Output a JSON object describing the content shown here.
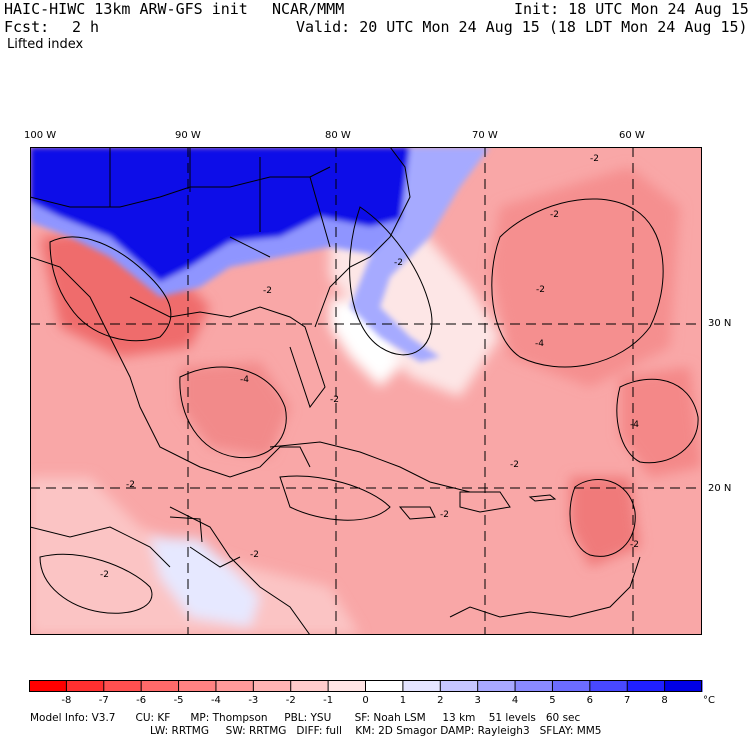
{
  "header": {
    "model_title": "HAIC-HIWC 13km ARW-GFS init",
    "institution": "NCAR/MMM",
    "init": "Init: 18 UTC Mon 24 Aug 15",
    "fcst_label": "Fcst:",
    "fcst_value": "2 h",
    "valid": "Valid: 20 UTC Mon 24 Aug 15 (18 LDT Mon 24 Aug 15)",
    "field": "Lifted index"
  },
  "map": {
    "lon_labels": [
      "100 W",
      "90 W",
      "80 W",
      "70 W",
      "60 W"
    ],
    "lat_labels": [
      "30 N",
      "20 N"
    ],
    "contour_labels": [
      "-2",
      "-2",
      "-2",
      "-2",
      "-2",
      "-4",
      "-4",
      "-4",
      "-2",
      "-2",
      "-2",
      "-2",
      "-2",
      "-2",
      "-2"
    ],
    "colors": {
      "strong_stable": "#0000e6",
      "weak_stable": "#d9dcff",
      "neutral": "#ffffff",
      "weak_unstable": "#fbb8b8",
      "moderate_unstable": "#f37b7b",
      "strong_unstable": "#e53a3a"
    }
  },
  "colorbar": {
    "tick_labels": [
      "-8",
      "-7",
      "-6",
      "-5",
      "-4",
      "-3",
      "-2",
      "-1",
      "0",
      "1",
      "2",
      "3",
      "4",
      "5",
      "6",
      "7",
      "8"
    ],
    "unit": "°C",
    "colors": [
      "#ff0000",
      "#ff3030",
      "#ff5050",
      "#ff6a6a",
      "#ff8282",
      "#ff9a9a",
      "#ffb4b4",
      "#ffcccc",
      "#ffe4e4",
      "#ffffff",
      "#e4e4ff",
      "#c6c6ff",
      "#a8a8ff",
      "#8a8aff",
      "#6c6cff",
      "#4848ff",
      "#2020ff",
      "#0000e6"
    ]
  },
  "model_info": {
    "line1": "Model Info: V3.7      CU: KF      MP: Thompson     PBL: YSU       SF: Noah LSM     13 km    51 levels   60 sec",
    "line2": "LW: RRTMG     SW: RRTMG   DIFF: full    KM: 2D Smagor DAMP: Rayleigh3   SFLAY: MM5"
  }
}
